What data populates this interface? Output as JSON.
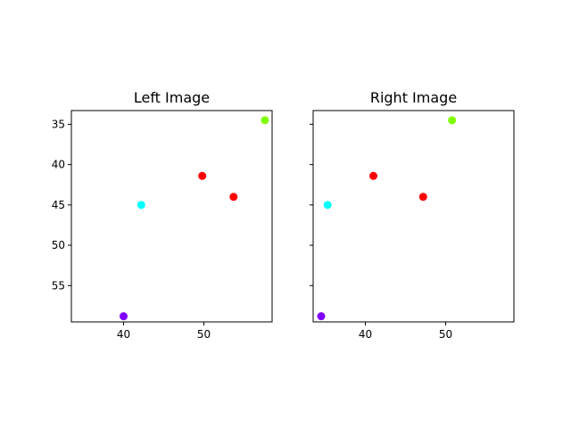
{
  "chart_data": [
    {
      "type": "scatter",
      "title": "Left Image",
      "xlabel": "",
      "ylabel": "",
      "xlim": [
        33.5,
        58.5
      ],
      "ylim": [
        59.5,
        33.3
      ],
      "y_inverted": true,
      "xticks": [
        40,
        50
      ],
      "yticks": [
        35,
        40,
        45,
        50,
        55
      ],
      "show_yticklabels": true,
      "grid": false,
      "points": [
        {
          "x": 40.0,
          "y": 58.8,
          "color": "#7f00ff"
        },
        {
          "x": 42.2,
          "y": 45.0,
          "color": "#00ffff"
        },
        {
          "x": 49.8,
          "y": 41.4,
          "color": "#ff0000"
        },
        {
          "x": 53.7,
          "y": 44.0,
          "color": "#ff0000"
        },
        {
          "x": 57.6,
          "y": 34.5,
          "color": "#80ff00"
        }
      ]
    },
    {
      "type": "scatter",
      "title": "Right Image",
      "xlabel": "",
      "ylabel": "",
      "xlim": [
        33.5,
        58.5
      ],
      "ylim": [
        59.5,
        33.3
      ],
      "y_inverted": true,
      "xticks": [
        40,
        50
      ],
      "yticks": [
        35,
        40,
        45,
        50,
        55
      ],
      "show_yticklabels": false,
      "grid": false,
      "points": [
        {
          "x": 34.5,
          "y": 58.8,
          "color": "#7f00ff"
        },
        {
          "x": 35.3,
          "y": 45.0,
          "color": "#00ffff"
        },
        {
          "x": 41.0,
          "y": 41.4,
          "color": "#ff0000"
        },
        {
          "x": 47.2,
          "y": 44.0,
          "color": "#ff0000"
        },
        {
          "x": 50.8,
          "y": 34.5,
          "color": "#80ff00"
        }
      ]
    }
  ]
}
